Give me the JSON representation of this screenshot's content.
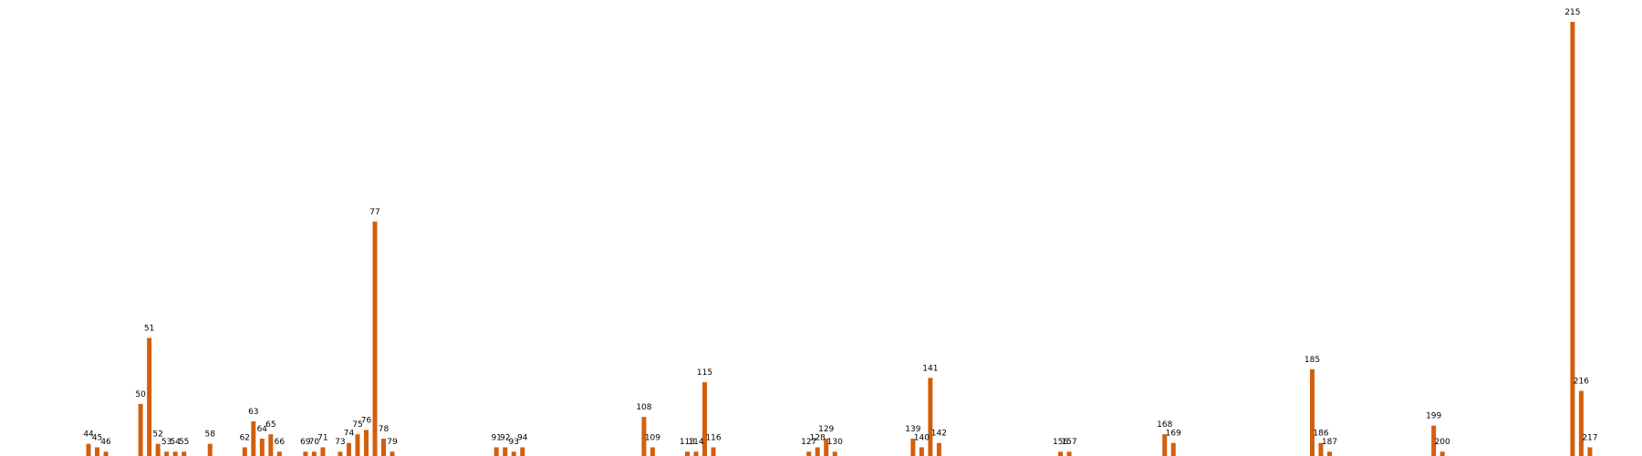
{
  "chart_data": {
    "type": "bar",
    "title": "",
    "xlabel": "",
    "ylabel": "",
    "bar_color": "#d35f0e",
    "label_color": "#000000",
    "background": "#ffffff",
    "grid": false,
    "axes_visible": false,
    "xlim": [
      34,
      223
    ],
    "ylim": [
      0,
      1000
    ],
    "series": [
      {
        "categories": [
          "44",
          "45",
          "46",
          "50",
          "51",
          "52",
          "53",
          "54",
          "55",
          "58",
          "62",
          "63",
          "64",
          "65",
          "66",
          "69",
          "70",
          "71",
          "73",
          "74",
          "75",
          "76",
          "77",
          "78",
          "79",
          "91",
          "92",
          "93",
          "94",
          "108",
          "109",
          "113",
          "114",
          "115",
          "116",
          "127",
          "128",
          "129",
          "130",
          "139",
          "140",
          "141",
          "142",
          "156",
          "157",
          "168",
          "169",
          "185",
          "186",
          "187",
          "199",
          "200",
          "215",
          "216",
          "217"
        ],
        "x": [
          44,
          45,
          46,
          50,
          51,
          52,
          53,
          54,
          55,
          58,
          62,
          63,
          64,
          65,
          66,
          69,
          70,
          71,
          73,
          74,
          75,
          76,
          77,
          78,
          79,
          91,
          92,
          93,
          94,
          108,
          109,
          113,
          114,
          115,
          116,
          127,
          128,
          129,
          130,
          139,
          140,
          141,
          142,
          156,
          157,
          168,
          169,
          185,
          186,
          187,
          199,
          200,
          215,
          216,
          217
        ],
        "values": [
          28,
          20,
          10,
          120,
          272,
          28,
          10,
          10,
          10,
          28,
          20,
          80,
          40,
          50,
          10,
          10,
          10,
          20,
          10,
          30,
          50,
          60,
          540,
          40,
          10,
          20,
          20,
          10,
          20,
          90,
          20,
          10,
          10,
          170,
          20,
          10,
          20,
          40,
          10,
          40,
          20,
          180,
          30,
          10,
          10,
          50,
          30,
          200,
          30,
          10,
          70,
          10,
          1000,
          150,
          20
        ]
      }
    ]
  }
}
